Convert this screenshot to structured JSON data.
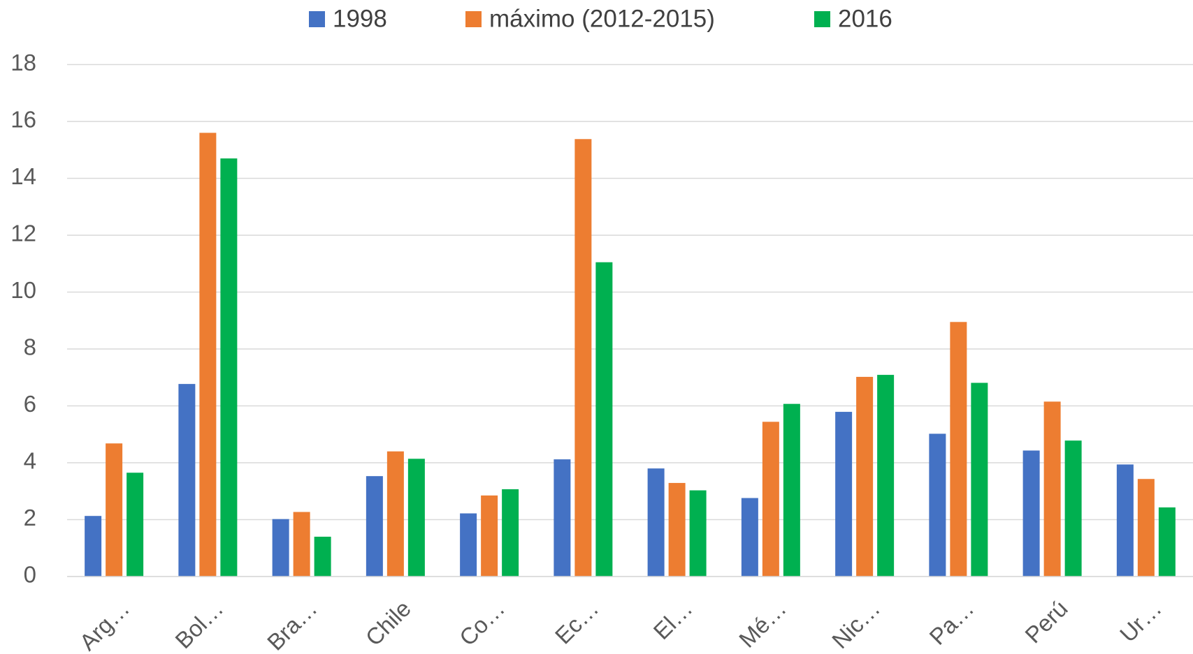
{
  "chart_data": {
    "type": "bar",
    "categories": [
      "Arg…",
      "Bol…",
      "Bra…",
      "Chile",
      "Co…",
      "Ec…",
      "El…",
      "Mé…",
      "Nic…",
      "Pa…",
      "Perú",
      "Ur…"
    ],
    "series": [
      {
        "name": "1998",
        "color": "#4472c4",
        "values": [
          2.13,
          6.77,
          2.02,
          3.53,
          2.22,
          4.12,
          3.8,
          2.76,
          5.79,
          5.02,
          4.43,
          3.94
        ]
      },
      {
        "name": "máximo (2012-2015)",
        "color": "#ed7d31",
        "values": [
          4.68,
          15.6,
          2.27,
          4.4,
          2.85,
          15.38,
          3.29,
          5.44,
          7.02,
          8.95,
          6.15,
          3.43
        ]
      },
      {
        "name": "2016",
        "color": "#00b050",
        "values": [
          3.65,
          14.7,
          1.4,
          4.14,
          3.07,
          11.05,
          3.03,
          6.07,
          7.09,
          6.81,
          4.78,
          2.43
        ]
      }
    ],
    "ylim": [
      0,
      18
    ],
    "yticks": [
      0,
      2,
      4,
      6,
      8,
      10,
      12,
      14,
      16,
      18
    ],
    "grid": true,
    "legend": "top"
  }
}
